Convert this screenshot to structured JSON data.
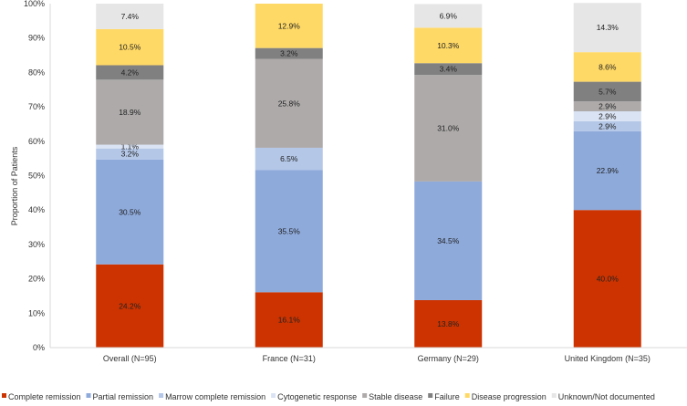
{
  "chart_data": {
    "type": "bar",
    "stacked": true,
    "categories": [
      "Overall (N=95)",
      "France (N=31)",
      "Germany (N=29)",
      "United Kingdom (N=35)"
    ],
    "ylabel": "Proportion of Patients",
    "ylim": [
      0,
      100
    ],
    "yticks": [
      "0%",
      "10%",
      "20%",
      "30%",
      "40%",
      "50%",
      "60%",
      "70%",
      "80%",
      "90%",
      "100%"
    ],
    "legend_position": "bottom",
    "grid": false,
    "series": [
      {
        "name": "Complete remission",
        "color": "#cc3300",
        "values": [
          24.2,
          16.1,
          13.8,
          40.0
        ],
        "labels": [
          "24.2%",
          "16.1%",
          "13.8%",
          "40.0%"
        ]
      },
      {
        "name": "Partial remission",
        "color": "#8eaadb",
        "values": [
          30.5,
          35.5,
          34.5,
          22.9
        ],
        "labels": [
          "30.5%",
          "35.5%",
          "34.5%",
          "22.9%"
        ]
      },
      {
        "name": "Marrow complete remission",
        "color": "#b4c7e7",
        "values": [
          3.2,
          6.5,
          0,
          2.9
        ],
        "labels": [
          "3.2%",
          "6.5%",
          "",
          "2.9%"
        ]
      },
      {
        "name": "Cytogenetic response",
        "color": "#dae3f3",
        "values": [
          1.1,
          0,
          0,
          2.9
        ],
        "labels": [
          "1.1%",
          "",
          "",
          "2.9%"
        ]
      },
      {
        "name": "Stable disease",
        "color": "#aeaaaa",
        "values": [
          18.9,
          25.8,
          31.0,
          2.9
        ],
        "labels": [
          "18.9%",
          "25.8%",
          "31.0%",
          "2.9%"
        ]
      },
      {
        "name": "Failure",
        "color": "#808080",
        "values": [
          4.2,
          3.2,
          3.4,
          5.7
        ],
        "labels": [
          "4.2%",
          "3.2%",
          "3.4%",
          "5.7%"
        ]
      },
      {
        "name": "Disease progression",
        "color": "#ffd966",
        "values": [
          10.5,
          12.9,
          10.3,
          8.6
        ],
        "labels": [
          "10.5%",
          "12.9%",
          "10.3%",
          "8.6%"
        ]
      },
      {
        "name": "Unknown/Not documented",
        "color": "#e7e6e6",
        "values": [
          7.4,
          0,
          6.9,
          14.3
        ],
        "labels": [
          "7.4%",
          "",
          "6.9%",
          "14.3%"
        ]
      }
    ]
  }
}
